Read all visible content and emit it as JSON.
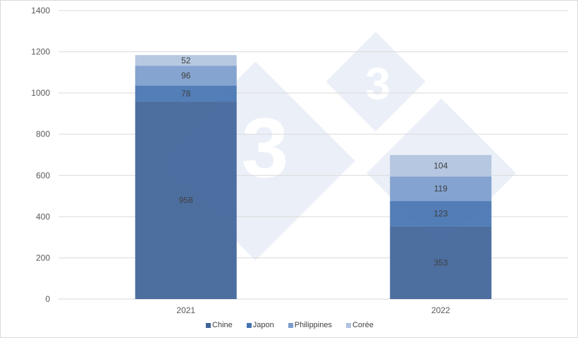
{
  "chart_data": {
    "type": "bar",
    "stacked": true,
    "categories": [
      "2021",
      "2022"
    ],
    "series": [
      {
        "name": "Chine",
        "values": [
          958,
          353
        ],
        "color": "#3e6398"
      },
      {
        "name": "Japon",
        "values": [
          78,
          123
        ],
        "color": "#4473b1"
      },
      {
        "name": "Philippines",
        "values": [
          96,
          119
        ],
        "color": "#7b9ccc"
      },
      {
        "name": "Corée",
        "values": [
          52,
          104
        ],
        "color": "#b1c3de"
      }
    ],
    "yticks": [
      "0",
      "200",
      "400",
      "600",
      "800",
      "1000",
      "1200",
      "1400"
    ],
    "ylim": [
      0,
      1400
    ],
    "grid": true,
    "legend": "bottom",
    "watermark": "3"
  }
}
